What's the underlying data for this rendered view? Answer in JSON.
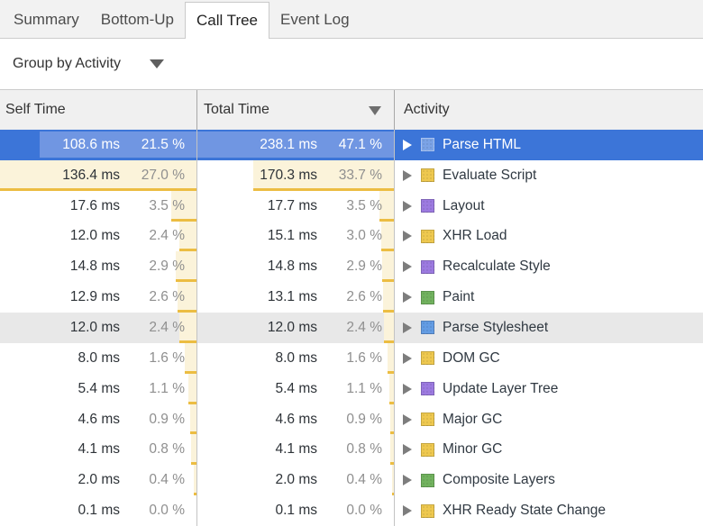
{
  "tabs": [
    {
      "label": "Summary",
      "active": false
    },
    {
      "label": "Bottom-Up",
      "active": false
    },
    {
      "label": "Call Tree",
      "active": true
    },
    {
      "label": "Event Log",
      "active": false
    }
  ],
  "toolbar": {
    "group_by_label": "Group by Activity"
  },
  "table": {
    "columns": [
      {
        "label": "Self Time",
        "sorted": false
      },
      {
        "label": "Total Time",
        "sorted": true,
        "sort_direction": "descending"
      },
      {
        "label": "Activity",
        "sorted": false
      }
    ],
    "max_self_pct": 27.0,
    "max_total_pct": 47.1,
    "rows": [
      {
        "self_time": "108.6 ms",
        "self_pct": 21.5,
        "self_pct_label": "21.5 %",
        "total_time": "238.1 ms",
        "total_pct": 47.1,
        "total_pct_label": "47.1 %",
        "activity": "Parse HTML",
        "category": "loading",
        "selected": true,
        "hovered": false
      },
      {
        "self_time": "136.4 ms",
        "self_pct": 27.0,
        "self_pct_label": "27.0 %",
        "total_time": "170.3 ms",
        "total_pct": 33.7,
        "total_pct_label": "33.7 %",
        "activity": "Evaluate Script",
        "category": "scripting",
        "selected": false,
        "hovered": false
      },
      {
        "self_time": "17.6 ms",
        "self_pct": 3.5,
        "self_pct_label": "3.5 %",
        "total_time": "17.7 ms",
        "total_pct": 3.5,
        "total_pct_label": "3.5 %",
        "activity": "Layout",
        "category": "rendering",
        "selected": false,
        "hovered": false
      },
      {
        "self_time": "12.0 ms",
        "self_pct": 2.4,
        "self_pct_label": "2.4 %",
        "total_time": "15.1 ms",
        "total_pct": 3.0,
        "total_pct_label": "3.0 %",
        "activity": "XHR Load",
        "category": "scripting",
        "selected": false,
        "hovered": false
      },
      {
        "self_time": "14.8 ms",
        "self_pct": 2.9,
        "self_pct_label": "2.9 %",
        "total_time": "14.8 ms",
        "total_pct": 2.9,
        "total_pct_label": "2.9 %",
        "activity": "Recalculate Style",
        "category": "rendering",
        "selected": false,
        "hovered": false
      },
      {
        "self_time": "12.9 ms",
        "self_pct": 2.6,
        "self_pct_label": "2.6 %",
        "total_time": "13.1 ms",
        "total_pct": 2.6,
        "total_pct_label": "2.6 %",
        "activity": "Paint",
        "category": "painting",
        "selected": false,
        "hovered": false
      },
      {
        "self_time": "12.0 ms",
        "self_pct": 2.4,
        "self_pct_label": "2.4 %",
        "total_time": "12.0 ms",
        "total_pct": 2.4,
        "total_pct_label": "2.4 %",
        "activity": "Parse Stylesheet",
        "category": "loading",
        "selected": false,
        "hovered": true
      },
      {
        "self_time": "8.0 ms",
        "self_pct": 1.6,
        "self_pct_label": "1.6 %",
        "total_time": "8.0 ms",
        "total_pct": 1.6,
        "total_pct_label": "1.6 %",
        "activity": "DOM GC",
        "category": "scripting",
        "selected": false,
        "hovered": false
      },
      {
        "self_time": "5.4 ms",
        "self_pct": 1.1,
        "self_pct_label": "1.1 %",
        "total_time": "5.4 ms",
        "total_pct": 1.1,
        "total_pct_label": "1.1 %",
        "activity": "Update Layer Tree",
        "category": "rendering",
        "selected": false,
        "hovered": false
      },
      {
        "self_time": "4.6 ms",
        "self_pct": 0.9,
        "self_pct_label": "0.9 %",
        "total_time": "4.6 ms",
        "total_pct": 0.9,
        "total_pct_label": "0.9 %",
        "activity": "Major GC",
        "category": "scripting",
        "selected": false,
        "hovered": false
      },
      {
        "self_time": "4.1 ms",
        "self_pct": 0.8,
        "self_pct_label": "0.8 %",
        "total_time": "4.1 ms",
        "total_pct": 0.8,
        "total_pct_label": "0.8 %",
        "activity": "Minor GC",
        "category": "scripting",
        "selected": false,
        "hovered": false
      },
      {
        "self_time": "2.0 ms",
        "self_pct": 0.4,
        "self_pct_label": "0.4 %",
        "total_time": "2.0 ms",
        "total_pct": 0.4,
        "total_pct_label": "0.4 %",
        "activity": "Composite Layers",
        "category": "painting",
        "selected": false,
        "hovered": false
      },
      {
        "self_time": "0.1 ms",
        "self_pct": 0.0,
        "self_pct_label": "0.0 %",
        "total_time": "0.1 ms",
        "total_pct": 0.0,
        "total_pct_label": "0.0 %",
        "activity": "XHR Ready State Change",
        "category": "scripting",
        "selected": false,
        "hovered": false
      }
    ]
  },
  "colors": {
    "selection_blue": "#3c75d8",
    "bar_fill": "#fbf3da",
    "bar_underline": "#ecbd42",
    "bar_fill_selected": "#7096e2",
    "category_loading": "#639ce4",
    "category_scripting": "#eec84f",
    "category_rendering": "#9c7ae0",
    "category_painting": "#71b25e"
  }
}
